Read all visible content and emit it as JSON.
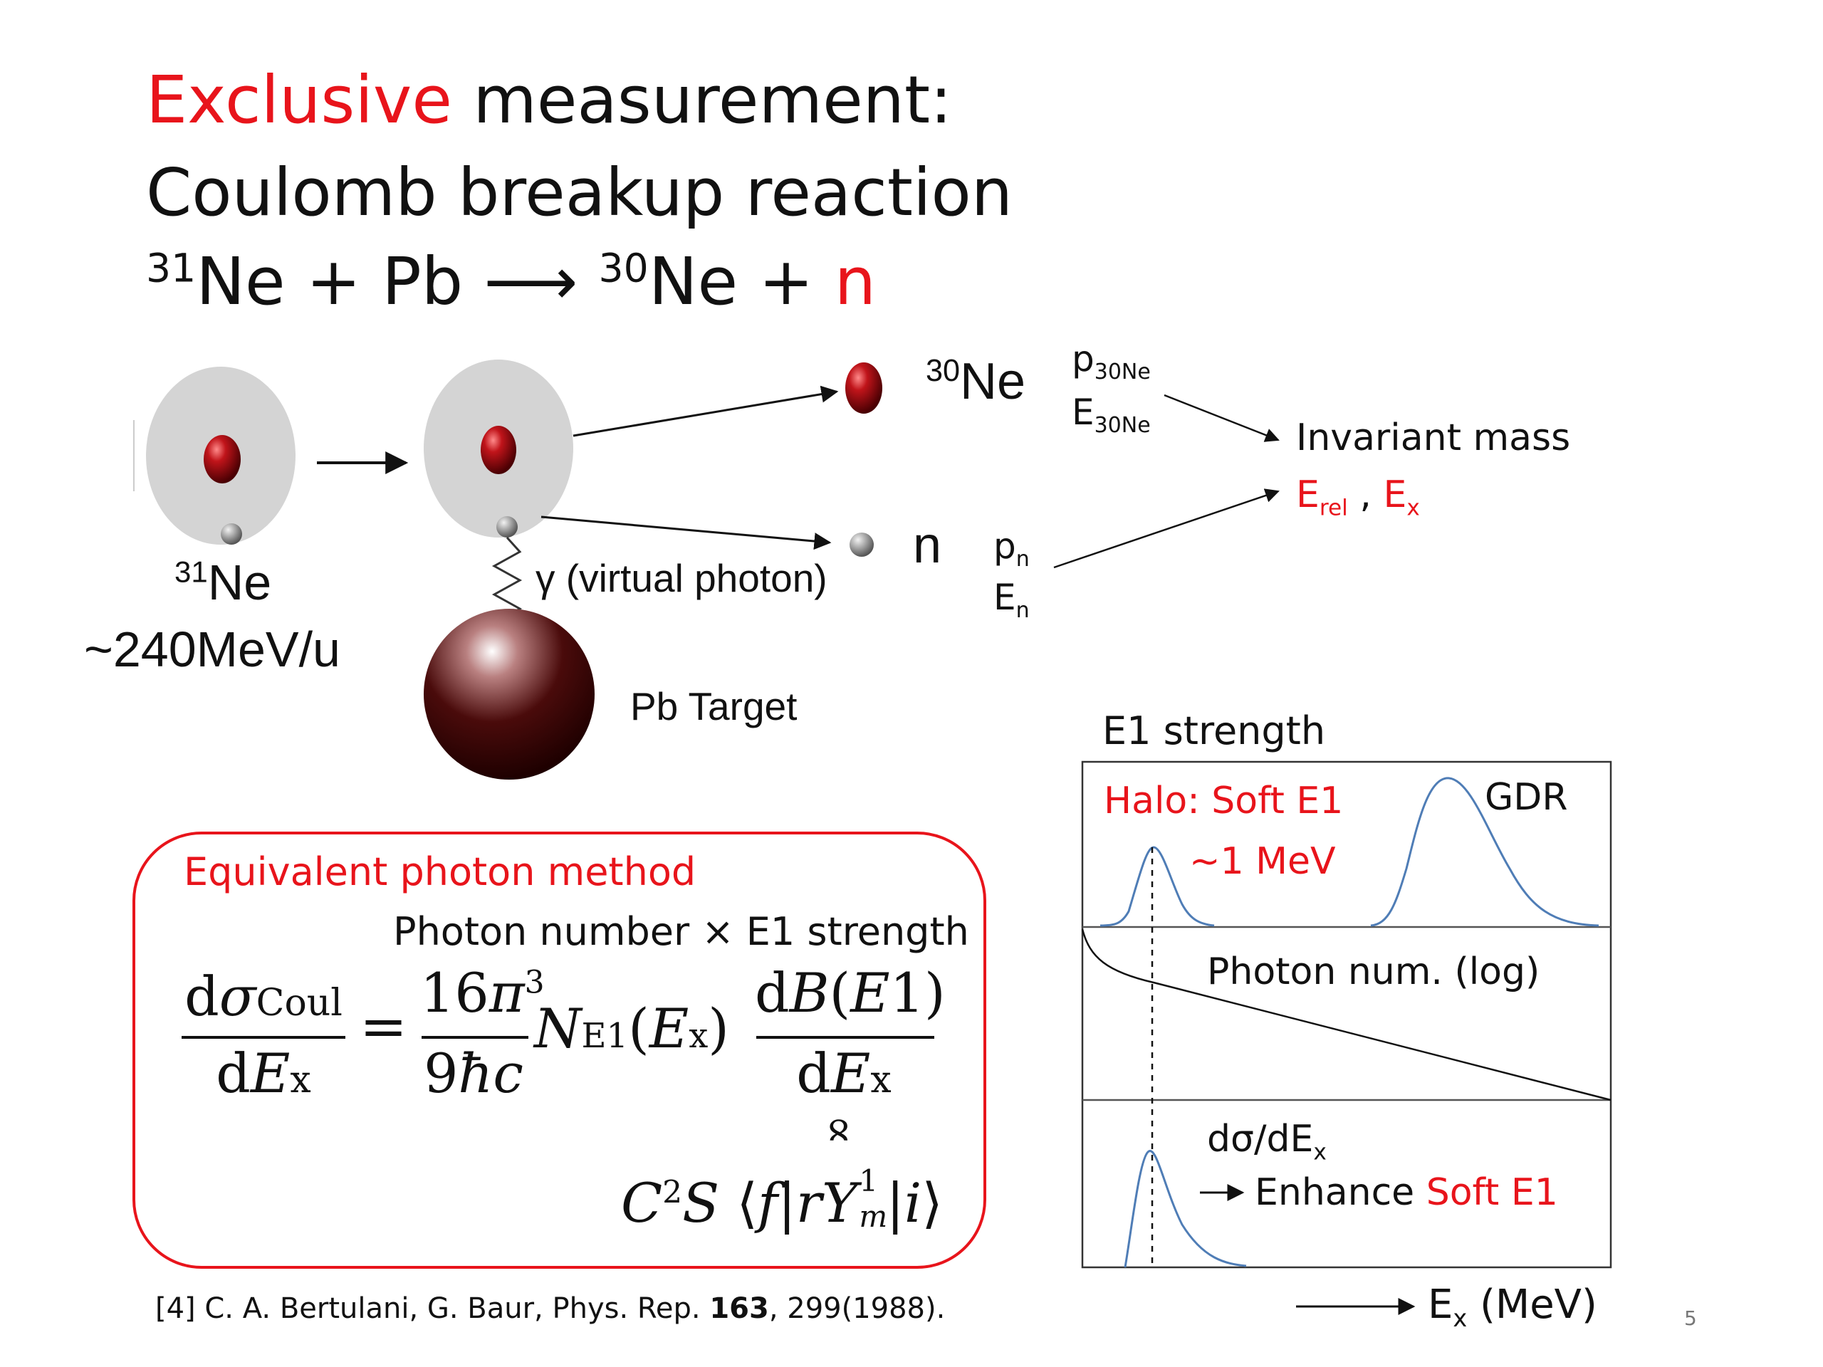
{
  "title": {
    "line1_red": "Exclusive",
    "line1_rest": "measurement:",
    "line2": "Coulomb breakup reaction",
    "reaction": {
      "mass_a": "31",
      "ne_a": "Ne + Pb",
      "arrow": "⟶",
      "mass_b": "30",
      "ne_b": "Ne + ",
      "n": "n"
    }
  },
  "diagram": {
    "projectile_mass": "31",
    "projectile_el": "Ne",
    "energy": "~240MeV/u",
    "photon": "γ (virtual photon)",
    "target": "Pb Target",
    "frag_mass": "30",
    "frag_el": "Ne",
    "neutron": "n",
    "p_frag": "p",
    "p_frag_sub": "30Ne",
    "e_frag": "E",
    "e_frag_sub": "30Ne",
    "p_n": "p",
    "p_n_sub": "n",
    "e_n": "E",
    "e_n_sub": "n",
    "invariant": "Invariant mass",
    "erel": "E",
    "erel_sub": "rel",
    "sep": " , ",
    "ex": "E",
    "ex_sub": "x"
  },
  "box": {
    "heading": "Equivalent photon method",
    "product": "Photon number × E1 strength",
    "citation_pre": "[4] C. A. Bertulani, G. Baur, Phys. Rep. ",
    "citation_bold": "163",
    "citation_post": ", 299(1988)."
  },
  "plot": {
    "title": "E1 strength",
    "halo": "Halo: Soft E1",
    "mev": "~1 MeV",
    "gdr": "GDR",
    "photon_num": "Photon num. (log)",
    "dsig": "dσ/dE",
    "dsig_sub": "x",
    "enhance": "Enhance ",
    "soft": "Soft E1",
    "xaxis": "E",
    "xaxis_sub": "x",
    "xaxis_unit": " (MeV)"
  },
  "page_number": "5",
  "colors": {
    "accent": "#e8141b",
    "curve": "#4f7db6",
    "box": "#e8141b"
  }
}
